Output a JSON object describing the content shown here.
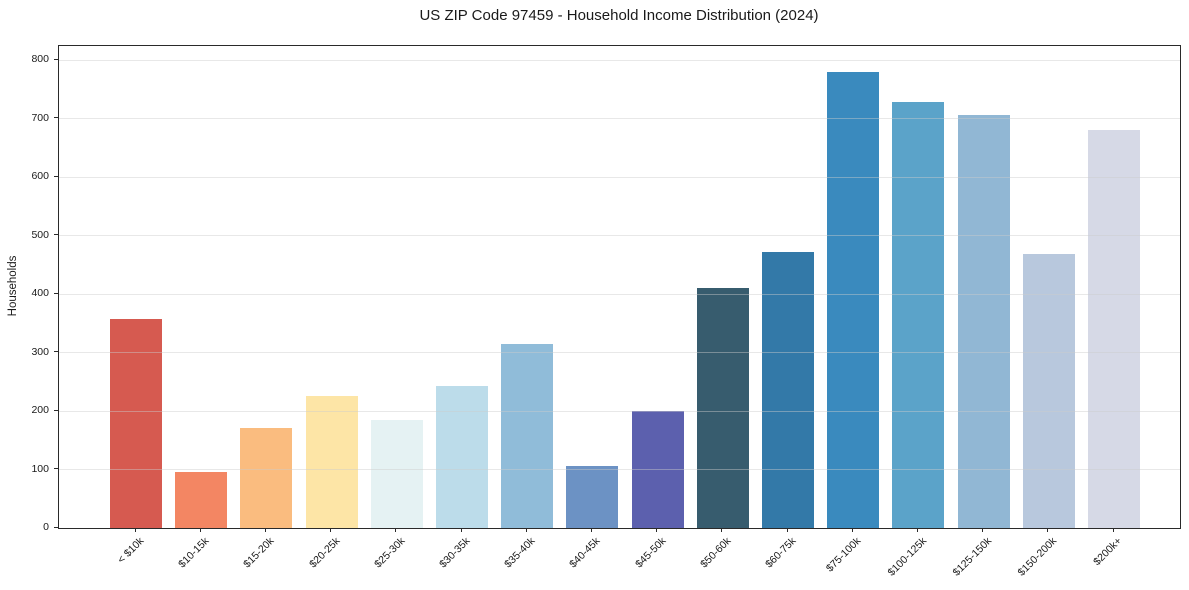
{
  "figure": {
    "title": "US ZIP Code 97459 - Household Income Distribution (2024)"
  },
  "chart_data": {
    "type": "bar",
    "title": "US ZIP Code 97459 - Household Income Distribution (2024)",
    "xlabel": "",
    "ylabel": "Households",
    "ylim": [
      0,
      824
    ],
    "yticks": [
      0,
      100,
      200,
      300,
      400,
      500,
      600,
      700,
      800
    ],
    "grid": "horizontal",
    "grid_color": "#e7e7e7",
    "legend_position": "none",
    "categories": [
      "< $10k",
      "$10-15k",
      "$15-20k",
      "$20-25k",
      "$25-30k",
      "$30-35k",
      "$35-40k",
      "$40-45k",
      "$45-50k",
      "$50-60k",
      "$60-75k",
      "$75-100k",
      "$100-125k",
      "$125-150k",
      "$150-200k",
      "$200k+"
    ],
    "values": [
      357,
      96,
      171,
      226,
      184,
      242,
      315,
      106,
      200,
      411,
      472,
      780,
      728,
      706,
      469,
      680
    ],
    "bar_colors": [
      "#d65a50",
      "#f38663",
      "#fabc7f",
      "#fde5a6",
      "#e5f2f3",
      "#bcdcea",
      "#90bcd9",
      "#6c92c4",
      "#5c60ae",
      "#375c6e",
      "#3379a8",
      "#3a8abe",
      "#5ba3c9",
      "#91b7d4",
      "#b8c8dd",
      "#d6d9e6"
    ],
    "spine_color": "#2a2a2a"
  }
}
